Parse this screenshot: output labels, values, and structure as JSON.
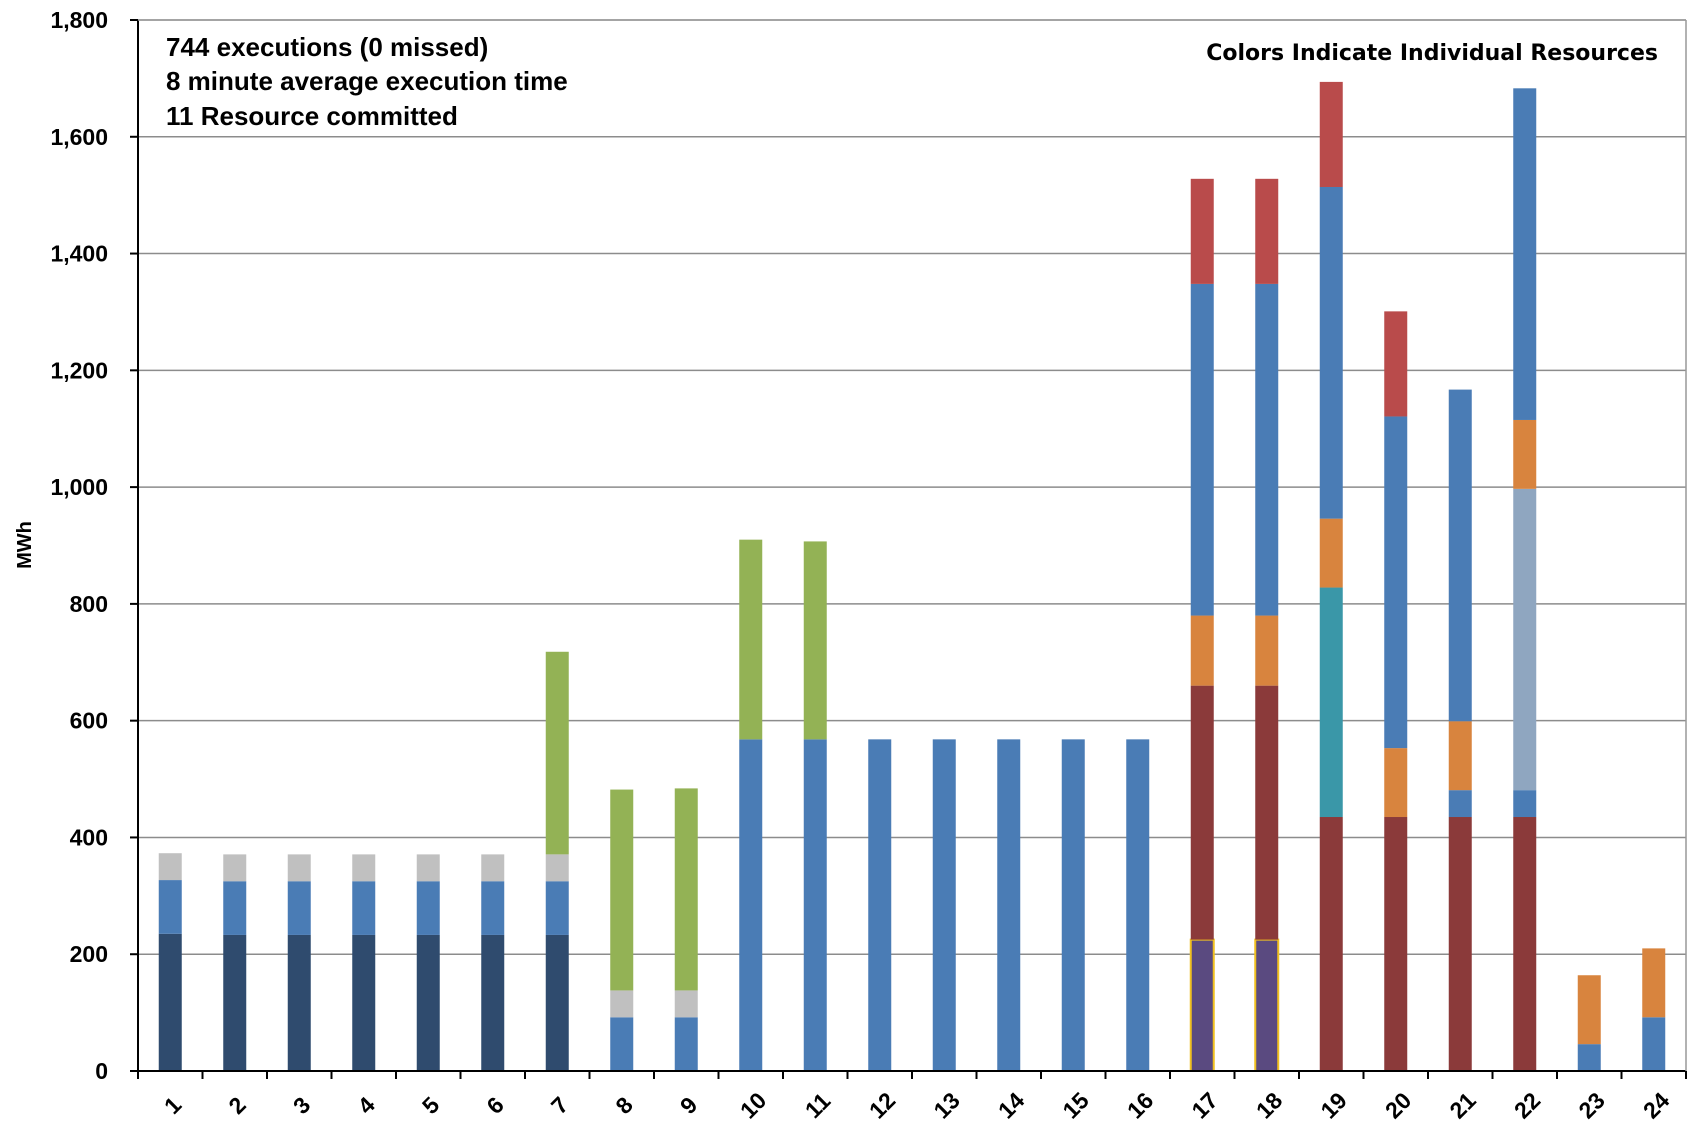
{
  "annotations": {
    "line1": "744 executions (0 missed)",
    "line2": "8 minute average execution time",
    "line3": "11 Resource committed",
    "colors_note": "Colors Indicate Individual Resources"
  },
  "chart_data": {
    "type": "bar",
    "stacked": true,
    "ylabel": "MWh",
    "xlabel": "",
    "ylim": [
      0,
      1800
    ],
    "yticks": [
      0,
      200,
      400,
      600,
      800,
      1000,
      1200,
      1400,
      1600,
      1800
    ],
    "ytick_labels": [
      "0",
      "200",
      "400",
      "600",
      "800",
      "1,000",
      "1,200",
      "1,400",
      "1,600",
      "1,800"
    ],
    "grid": true,
    "categories": [
      "1",
      "2",
      "3",
      "4",
      "5",
      "6",
      "7",
      "8",
      "9",
      "10",
      "11",
      "12",
      "13",
      "14",
      "15",
      "16",
      "17",
      "18",
      "19",
      "20",
      "21",
      "22",
      "23",
      "24"
    ],
    "colors": {
      "navy": "#2f4b6e",
      "blue": "#4a7cb5",
      "gray": "#c0c0c0",
      "green": "#93b255",
      "darkred": "#8b3a3a",
      "purple": "#5a4a80",
      "orange": "#d8843e",
      "red": "#b94b4b",
      "teal": "#3a97a8",
      "lightslate": "#8fa6c0",
      "purple_outline": "#f0c020"
    },
    "stacks": [
      [
        {
          "c": "navy",
          "v": 235
        },
        {
          "c": "blue",
          "v": 92
        },
        {
          "c": "gray",
          "v": 46
        }
      ],
      [
        {
          "c": "navy",
          "v": 233
        },
        {
          "c": "blue",
          "v": 92
        },
        {
          "c": "gray",
          "v": 46
        }
      ],
      [
        {
          "c": "navy",
          "v": 233
        },
        {
          "c": "blue",
          "v": 92
        },
        {
          "c": "gray",
          "v": 46
        }
      ],
      [
        {
          "c": "navy",
          "v": 233
        },
        {
          "c": "blue",
          "v": 92
        },
        {
          "c": "gray",
          "v": 46
        }
      ],
      [
        {
          "c": "navy",
          "v": 233
        },
        {
          "c": "blue",
          "v": 92
        },
        {
          "c": "gray",
          "v": 46
        }
      ],
      [
        {
          "c": "navy",
          "v": 233
        },
        {
          "c": "blue",
          "v": 92
        },
        {
          "c": "gray",
          "v": 46
        }
      ],
      [
        {
          "c": "navy",
          "v": 233
        },
        {
          "c": "blue",
          "v": 92
        },
        {
          "c": "gray",
          "v": 46
        },
        {
          "c": "green",
          "v": 347
        }
      ],
      [
        {
          "c": "blue",
          "v": 92
        },
        {
          "c": "gray",
          "v": 46
        },
        {
          "c": "green",
          "v": 344
        }
      ],
      [
        {
          "c": "blue",
          "v": 92
        },
        {
          "c": "gray",
          "v": 46
        },
        {
          "c": "green",
          "v": 346
        }
      ],
      [
        {
          "c": "blue",
          "v": 568
        },
        {
          "c": "green",
          "v": 342
        }
      ],
      [
        {
          "c": "blue",
          "v": 568
        },
        {
          "c": "green",
          "v": 339
        }
      ],
      [
        {
          "c": "blue",
          "v": 568
        }
      ],
      [
        {
          "c": "blue",
          "v": 568
        }
      ],
      [
        {
          "c": "blue",
          "v": 568
        }
      ],
      [
        {
          "c": "blue",
          "v": 568
        }
      ],
      [
        {
          "c": "blue",
          "v": 568
        }
      ],
      [
        {
          "c": "purple",
          "v": 225
        },
        {
          "c": "darkred",
          "v": 435
        },
        {
          "c": "orange",
          "v": 120
        },
        {
          "c": "blue",
          "v": 568
        },
        {
          "c": "red",
          "v": 180
        }
      ],
      [
        {
          "c": "purple",
          "v": 225
        },
        {
          "c": "darkred",
          "v": 435
        },
        {
          "c": "orange",
          "v": 120
        },
        {
          "c": "blue",
          "v": 568
        },
        {
          "c": "red",
          "v": 180
        }
      ],
      [
        {
          "c": "darkred",
          "v": 435
        },
        {
          "c": "teal",
          "v": 393
        },
        {
          "c": "orange",
          "v": 118
        },
        {
          "c": "blue",
          "v": 568
        },
        {
          "c": "red",
          "v": 180
        }
      ],
      [
        {
          "c": "darkred",
          "v": 435
        },
        {
          "c": "orange",
          "v": 118
        },
        {
          "c": "blue",
          "v": 568
        },
        {
          "c": "red",
          "v": 180
        }
      ],
      [
        {
          "c": "darkred",
          "v": 435
        },
        {
          "c": "blue",
          "v": 46
        },
        {
          "c": "orange",
          "v": 118
        },
        {
          "c": "blue",
          "v": 568
        }
      ],
      [
        {
          "c": "darkred",
          "v": 435
        },
        {
          "c": "blue",
          "v": 46
        },
        {
          "c": "lightslate",
          "v": 516
        },
        {
          "c": "orange",
          "v": 118
        },
        {
          "c": "blue",
          "v": 568
        }
      ],
      [
        {
          "c": "blue",
          "v": 46
        },
        {
          "c": "orange",
          "v": 118
        }
      ],
      [
        {
          "c": "blue",
          "v": 92
        },
        {
          "c": "orange",
          "v": 118
        }
      ]
    ]
  }
}
